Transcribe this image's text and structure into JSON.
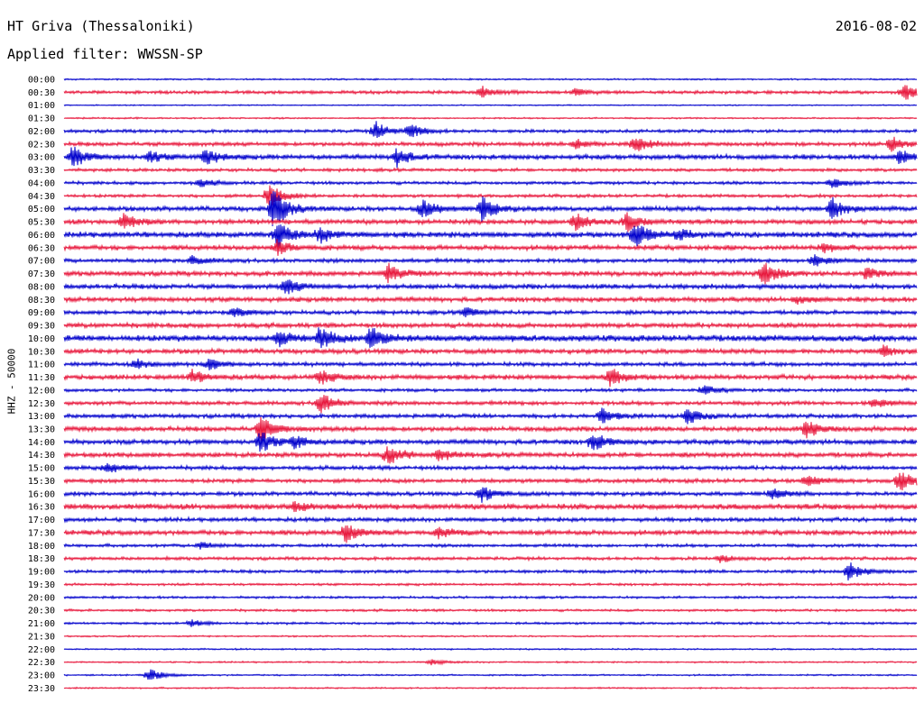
{
  "header": {
    "station": "HT Griva (Thessaloniki)",
    "date": "2016-08-02",
    "filter": "Applied filter: WWSSN-SP"
  },
  "chart_data": {
    "type": "line",
    "ylabel": "HHZ - 50000",
    "colors": [
      "#0000cc",
      "#e8173c"
    ],
    "rows": [
      {
        "label": "00:00",
        "color": "#0000cc",
        "amp": 1.0,
        "events": []
      },
      {
        "label": "00:30",
        "color": "#e8173c",
        "amp": 2.0,
        "events": [
          [
            0.49,
            7
          ],
          [
            0.6,
            4
          ],
          [
            0.985,
            10
          ]
        ]
      },
      {
        "label": "01:00",
        "color": "#0000cc",
        "amp": 0.8,
        "events": []
      },
      {
        "label": "01:30",
        "color": "#e8173c",
        "amp": 1.0,
        "events": []
      },
      {
        "label": "02:00",
        "color": "#0000cc",
        "amp": 2.0,
        "events": [
          [
            0.365,
            10
          ],
          [
            0.405,
            8
          ]
        ]
      },
      {
        "label": "02:30",
        "color": "#e8173c",
        "amp": 2.5,
        "events": [
          [
            0.6,
            5
          ],
          [
            0.67,
            9
          ],
          [
            0.97,
            8
          ]
        ]
      },
      {
        "label": "03:00",
        "color": "#0000cc",
        "amp": 3.0,
        "events": [
          [
            0.01,
            12
          ],
          [
            0.1,
            6
          ],
          [
            0.165,
            10
          ],
          [
            0.39,
            10
          ],
          [
            0.98,
            8
          ]
        ]
      },
      {
        "label": "03:30",
        "color": "#e8173c",
        "amp": 2.0,
        "events": []
      },
      {
        "label": "04:00",
        "color": "#0000cc",
        "amp": 2.0,
        "events": [
          [
            0.16,
            4
          ],
          [
            0.9,
            5
          ]
        ]
      },
      {
        "label": "04:30",
        "color": "#e8173c",
        "amp": 2.0,
        "events": [
          [
            0.24,
            14
          ]
        ]
      },
      {
        "label": "05:00",
        "color": "#0000cc",
        "amp": 3.0,
        "events": [
          [
            0.245,
            24
          ],
          [
            0.42,
            10
          ],
          [
            0.49,
            14
          ],
          [
            0.9,
            12
          ]
        ]
      },
      {
        "label": "05:30",
        "color": "#e8173c",
        "amp": 3.0,
        "events": [
          [
            0.07,
            8
          ],
          [
            0.6,
            10
          ],
          [
            0.66,
            10
          ]
        ]
      },
      {
        "label": "06:00",
        "color": "#0000cc",
        "amp": 3.5,
        "events": [
          [
            0.25,
            14
          ],
          [
            0.3,
            8
          ],
          [
            0.67,
            14
          ],
          [
            0.72,
            6
          ]
        ]
      },
      {
        "label": "06:30",
        "color": "#e8173c",
        "amp": 3.0,
        "events": [
          [
            0.25,
            8
          ],
          [
            0.89,
            5
          ]
        ]
      },
      {
        "label": "07:00",
        "color": "#0000cc",
        "amp": 2.5,
        "events": [
          [
            0.15,
            5
          ],
          [
            0.88,
            6
          ]
        ]
      },
      {
        "label": "07:30",
        "color": "#e8173c",
        "amp": 3.0,
        "events": [
          [
            0.38,
            10
          ],
          [
            0.82,
            14
          ],
          [
            0.94,
            6
          ]
        ]
      },
      {
        "label": "08:00",
        "color": "#0000cc",
        "amp": 3.0,
        "events": [
          [
            0.26,
            9
          ]
        ]
      },
      {
        "label": "08:30",
        "color": "#e8173c",
        "amp": 3.0,
        "events": [
          [
            0.86,
            4
          ]
        ]
      },
      {
        "label": "09:00",
        "color": "#0000cc",
        "amp": 2.5,
        "events": [
          [
            0.2,
            5
          ],
          [
            0.47,
            5
          ]
        ]
      },
      {
        "label": "09:30",
        "color": "#e8173c",
        "amp": 3.0,
        "events": []
      },
      {
        "label": "10:00",
        "color": "#0000cc",
        "amp": 4.0,
        "events": [
          [
            0.25,
            8
          ],
          [
            0.3,
            12
          ],
          [
            0.36,
            14
          ]
        ]
      },
      {
        "label": "10:30",
        "color": "#e8173c",
        "amp": 3.0,
        "events": [
          [
            0.96,
            6
          ]
        ]
      },
      {
        "label": "11:00",
        "color": "#0000cc",
        "amp": 2.5,
        "events": [
          [
            0.085,
            5
          ],
          [
            0.17,
            6
          ]
        ]
      },
      {
        "label": "11:30",
        "color": "#e8173c",
        "amp": 3.0,
        "events": [
          [
            0.15,
            7
          ],
          [
            0.3,
            8
          ],
          [
            0.64,
            10
          ]
        ]
      },
      {
        "label": "12:00",
        "color": "#0000cc",
        "amp": 2.0,
        "events": [
          [
            0.75,
            5
          ]
        ]
      },
      {
        "label": "12:30",
        "color": "#e8173c",
        "amp": 2.5,
        "events": [
          [
            0.3,
            12
          ],
          [
            0.95,
            5
          ]
        ]
      },
      {
        "label": "13:00",
        "color": "#0000cc",
        "amp": 2.5,
        "events": [
          [
            0.63,
            9
          ],
          [
            0.73,
            10
          ]
        ]
      },
      {
        "label": "13:30",
        "color": "#e8173c",
        "amp": 3.0,
        "events": [
          [
            0.23,
            14
          ],
          [
            0.87,
            10
          ]
        ]
      },
      {
        "label": "14:00",
        "color": "#0000cc",
        "amp": 3.0,
        "events": [
          [
            0.23,
            12
          ],
          [
            0.27,
            7
          ],
          [
            0.62,
            10
          ]
        ]
      },
      {
        "label": "14:30",
        "color": "#e8173c",
        "amp": 3.0,
        "events": [
          [
            0.38,
            11
          ],
          [
            0.44,
            6
          ]
        ]
      },
      {
        "label": "15:00",
        "color": "#0000cc",
        "amp": 2.5,
        "events": [
          [
            0.05,
            6
          ]
        ]
      },
      {
        "label": "15:30",
        "color": "#e8173c",
        "amp": 2.5,
        "events": [
          [
            0.87,
            6
          ],
          [
            0.98,
            12
          ]
        ]
      },
      {
        "label": "16:00",
        "color": "#0000cc",
        "amp": 2.5,
        "events": [
          [
            0.49,
            9
          ],
          [
            0.83,
            6
          ]
        ]
      },
      {
        "label": "16:30",
        "color": "#e8173c",
        "amp": 3.5,
        "events": [
          [
            0.27,
            6
          ]
        ]
      },
      {
        "label": "17:00",
        "color": "#0000cc",
        "amp": 2.5,
        "events": []
      },
      {
        "label": "17:30",
        "color": "#e8173c",
        "amp": 3.0,
        "events": [
          [
            0.33,
            12
          ],
          [
            0.44,
            6
          ]
        ]
      },
      {
        "label": "18:00",
        "color": "#0000cc",
        "amp": 2.0,
        "events": [
          [
            0.16,
            4
          ]
        ]
      },
      {
        "label": "18:30",
        "color": "#e8173c",
        "amp": 2.0,
        "events": [
          [
            0.77,
            4
          ]
        ]
      },
      {
        "label": "19:00",
        "color": "#0000cc",
        "amp": 2.0,
        "events": [
          [
            0.92,
            10
          ]
        ]
      },
      {
        "label": "19:30",
        "color": "#e8173c",
        "amp": 1.5,
        "events": []
      },
      {
        "label": "20:00",
        "color": "#0000cc",
        "amp": 1.5,
        "events": []
      },
      {
        "label": "20:30",
        "color": "#e8173c",
        "amp": 1.5,
        "events": []
      },
      {
        "label": "21:00",
        "color": "#0000cc",
        "amp": 1.5,
        "events": [
          [
            0.15,
            4
          ]
        ]
      },
      {
        "label": "21:30",
        "color": "#e8173c",
        "amp": 1.0,
        "events": []
      },
      {
        "label": "22:00",
        "color": "#0000cc",
        "amp": 1.0,
        "events": []
      },
      {
        "label": "22:30",
        "color": "#e8173c",
        "amp": 1.0,
        "events": [
          [
            0.43,
            3
          ]
        ]
      },
      {
        "label": "23:00",
        "color": "#0000cc",
        "amp": 1.0,
        "events": [
          [
            0.1,
            7
          ]
        ]
      },
      {
        "label": "23:30",
        "color": "#e8173c",
        "amp": 1.0,
        "events": []
      }
    ]
  }
}
